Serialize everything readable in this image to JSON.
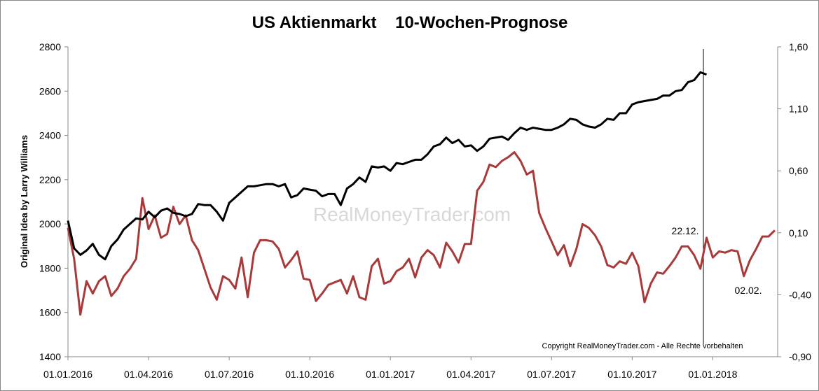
{
  "chart_data": {
    "type": "line",
    "title": "US Aktienmarkt    10-Wochen-Prognose",
    "y_label": "Original Idea by Larry Williams",
    "watermark": "RealMoneyTrader.com",
    "copyright": "Copyright RealMoneyTrader.com - Alle Rechte vorbehalten",
    "annotations": [
      "22.12.",
      "02.02."
    ],
    "categories": [
      "01.01.2016",
      null,
      null,
      null,
      null,
      null,
      null,
      null,
      null,
      null,
      null,
      null,
      null,
      "01.04.2016",
      null,
      null,
      null,
      null,
      null,
      null,
      null,
      null,
      null,
      null,
      null,
      null,
      "01.07.2016",
      null,
      null,
      null,
      null,
      null,
      null,
      null,
      null,
      null,
      null,
      null,
      null,
      "01.10.2016",
      null,
      null,
      null,
      null,
      null,
      null,
      null,
      null,
      null,
      null,
      null,
      null,
      "01.01.2017",
      null,
      null,
      null,
      null,
      null,
      null,
      null,
      null,
      null,
      null,
      null,
      null,
      "01.04.2017",
      null,
      null,
      null,
      null,
      null,
      null,
      null,
      null,
      null,
      null,
      null,
      null,
      "01.07.2017",
      null,
      null,
      null,
      null,
      null,
      null,
      null,
      null,
      null,
      null,
      null,
      null,
      "01.10.2017",
      null,
      null,
      null,
      null,
      null,
      null,
      null,
      null,
      null,
      null,
      null,
      null,
      "01.01.2018",
      null,
      null,
      null,
      null,
      null,
      null,
      null,
      null,
      null,
      null
    ],
    "series": [
      {
        "color": "#000000",
        "values": [
          2015,
          1890,
          1860,
          1880,
          1910,
          1860,
          1840,
          1900,
          1930,
          1975,
          2000,
          2025,
          2020,
          2055,
          2030,
          2060,
          2070,
          2050,
          2045,
          2035,
          2045,
          2090,
          2085,
          2085,
          2055,
          2015,
          2095,
          2120,
          2145,
          2170,
          2170,
          2175,
          2180,
          2180,
          2170,
          2180,
          2120,
          2130,
          2160,
          2155,
          2150,
          2125,
          2135,
          2135,
          2085,
          2160,
          2180,
          2210,
          2190,
          2260,
          2255,
          2260,
          2240,
          2275,
          2270,
          2280,
          2290,
          2290,
          2315,
          2350,
          2360,
          2390,
          2365,
          2380,
          2350,
          2355,
          2330,
          2350,
          2385,
          2390,
          2395,
          2380,
          2410,
          2435,
          2425,
          2435,
          2430,
          2425,
          2425,
          2435,
          2450,
          2475,
          2470,
          2450,
          2440,
          2435,
          2450,
          2475,
          2470,
          2500,
          2500,
          2540,
          2550,
          2555,
          2560,
          2565,
          2580,
          2580,
          2600,
          2605,
          2640,
          2650,
          2685,
          2675,
          null,
          null,
          null,
          null,
          null,
          null,
          null,
          null,
          null,
          null,
          null
        ]
      },
      {
        "color": "#a93a3a",
        "axis": "y2",
        "values": [
          0.14,
          -0.11,
          -0.56,
          -0.29,
          -0.39,
          -0.29,
          -0.25,
          -0.41,
          -0.35,
          -0.25,
          -0.19,
          -0.11,
          0.38,
          0.13,
          0.24,
          0.06,
          0.09,
          0.31,
          0.17,
          0.24,
          0.04,
          -0.04,
          -0.19,
          -0.34,
          -0.44,
          -0.25,
          -0.28,
          -0.35,
          -0.1,
          -0.42,
          -0.06,
          0.04,
          0.04,
          0.03,
          -0.03,
          -0.18,
          -0.12,
          -0.05,
          -0.27,
          -0.28,
          -0.45,
          -0.39,
          -0.32,
          -0.3,
          -0.28,
          -0.39,
          -0.25,
          -0.42,
          -0.44,
          -0.17,
          -0.11,
          -0.31,
          -0.29,
          -0.21,
          -0.18,
          -0.11,
          -0.26,
          -0.1,
          -0.04,
          -0.08,
          -0.18,
          0.02,
          -0.05,
          -0.14,
          0.01,
          0.01,
          0.44,
          0.51,
          0.65,
          0.63,
          0.68,
          0.71,
          0.75,
          0.68,
          0.57,
          0.6,
          0.26,
          0.14,
          0.03,
          -0.08,
          0.0,
          -0.17,
          -0.03,
          0.17,
          0.14,
          0.08,
          -0.01,
          -0.16,
          -0.18,
          -0.13,
          -0.15,
          -0.06,
          -0.17,
          -0.46,
          -0.31,
          -0.22,
          -0.23,
          -0.17,
          -0.1,
          -0.01,
          -0.01,
          -0.08,
          -0.19,
          0.06,
          -0.1,
          -0.05,
          -0.06,
          -0.04,
          -0.05,
          -0.25,
          -0.12,
          -0.03,
          0.07,
          0.07,
          0.12
        ]
      }
    ],
    "ylim": [
      1400,
      2800
    ],
    "yticks": [
      1400,
      1600,
      1800,
      2000,
      2200,
      2400,
      2600,
      2800
    ],
    "y2lim": [
      -0.9,
      1.6
    ],
    "y2ticks": [
      {
        "value": -0.9,
        "label": "-0,90"
      },
      {
        "value": -0.4,
        "label": "-0,40"
      },
      {
        "value": 0.1,
        "label": "0,10"
      },
      {
        "value": 0.6,
        "label": "0,60"
      },
      {
        "value": 1.1,
        "label": "1,10"
      },
      {
        "value": 1.6,
        "label": "1,60"
      }
    ],
    "grid": false
  }
}
